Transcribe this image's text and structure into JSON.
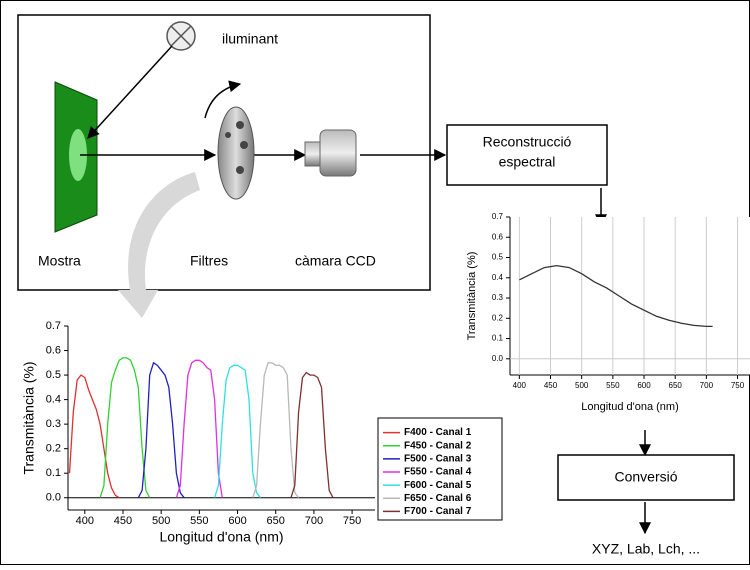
{
  "diagram": {
    "illuminant": "iluminant",
    "sample": "Mostra",
    "filters": "Filtres",
    "camera": "càmara CCD",
    "reconstruction": [
      "Reconstrucció",
      "espectral"
    ],
    "conversion": "Conversió",
    "output": "XYZ, Lab, Lch, ..."
  },
  "chart_data": [
    {
      "type": "line",
      "xlabel": "Longitud d'ona (nm)",
      "ylabel": "Transmitància (%)",
      "xlim": [
        378,
        780
      ],
      "xticks": [
        400,
        450,
        500,
        550,
        600,
        650,
        700,
        750
      ],
      "ylim": [
        -0.05,
        0.7
      ],
      "yticks": [
        {
          "value": 0,
          "label": "0.0"
        },
        0.1,
        0.2,
        0.3,
        0.4,
        0.5,
        0.6,
        0.7
      ],
      "legend": "right",
      "series": [
        {
          "name": "F400 - Canal 1",
          "color": "#e03030",
          "x": [
            380,
            385,
            390,
            395,
            400,
            405,
            410,
            415,
            420,
            425,
            430,
            435,
            440,
            445
          ],
          "values": [
            0.1,
            0.35,
            0.48,
            0.5,
            0.49,
            0.44,
            0.4,
            0.36,
            0.3,
            0.2,
            0.1,
            0.04,
            0.01,
            0
          ]
        },
        {
          "name": "F450 - Canal 2",
          "color": "#30d030",
          "x": [
            420,
            425,
            430,
            435,
            440,
            445,
            450,
            455,
            460,
            465,
            470,
            475,
            480,
            485
          ],
          "values": [
            0,
            0.05,
            0.3,
            0.47,
            0.52,
            0.56,
            0.57,
            0.57,
            0.56,
            0.52,
            0.45,
            0.2,
            0.03,
            0
          ]
        },
        {
          "name": "F500 - Canal 3",
          "color": "#2020c0",
          "x": [
            470,
            475,
            480,
            485,
            490,
            495,
            500,
            505,
            510,
            515,
            520,
            525,
            530
          ],
          "values": [
            0,
            0.03,
            0.2,
            0.5,
            0.55,
            0.54,
            0.52,
            0.5,
            0.45,
            0.3,
            0.1,
            0.02,
            0
          ]
        },
        {
          "name": "F550 - Canal 4",
          "color": "#e030e0",
          "x": [
            520,
            525,
            530,
            535,
            540,
            545,
            550,
            555,
            560,
            565,
            570,
            575,
            580
          ],
          "values": [
            0,
            0.05,
            0.3,
            0.5,
            0.55,
            0.56,
            0.56,
            0.55,
            0.53,
            0.52,
            0.4,
            0.1,
            0
          ]
        },
        {
          "name": "F600 - Canal 5",
          "color": "#30e0e0",
          "x": [
            570,
            575,
            580,
            585,
            590,
            595,
            600,
            605,
            610,
            615,
            620,
            625,
            630
          ],
          "values": [
            0,
            0.05,
            0.3,
            0.48,
            0.53,
            0.54,
            0.54,
            0.53,
            0.52,
            0.4,
            0.1,
            0.02,
            0
          ]
        },
        {
          "name": "F650 - Canal 6",
          "color": "#b8b8b8",
          "x": [
            620,
            625,
            630,
            635,
            640,
            645,
            650,
            655,
            660,
            665,
            670,
            675,
            680
          ],
          "values": [
            0,
            0.05,
            0.3,
            0.5,
            0.55,
            0.55,
            0.54,
            0.54,
            0.53,
            0.5,
            0.2,
            0.02,
            0
          ]
        },
        {
          "name": "F700 - Canal 7",
          "color": "#803030",
          "x": [
            670,
            675,
            680,
            685,
            690,
            695,
            700,
            705,
            710,
            715,
            720,
            725
          ],
          "values": [
            0,
            0.05,
            0.35,
            0.49,
            0.51,
            0.5,
            0.5,
            0.49,
            0.45,
            0.2,
            0.03,
            0
          ]
        }
      ]
    },
    {
      "type": "line",
      "xlabel": "Longitud d'ona (nm)",
      "ylabel": "Transmitància (%)",
      "xlim": [
        385,
        770
      ],
      "xticks": [
        400,
        450,
        500,
        550,
        600,
        650,
        700,
        750
      ],
      "ylim": [
        -0.08,
        0.7
      ],
      "yticks": [
        {
          "value": 0,
          "label": "0.0"
        },
        0.1,
        0.2,
        0.3,
        0.4,
        0.5,
        0.6,
        0.7
      ],
      "grid": true,
      "series": [
        {
          "color": "#333333",
          "x": [
            400,
            420,
            440,
            460,
            480,
            500,
            520,
            540,
            560,
            580,
            600,
            620,
            640,
            660,
            680,
            700,
            710
          ],
          "values": [
            0.39,
            0.42,
            0.45,
            0.46,
            0.45,
            0.42,
            0.38,
            0.35,
            0.31,
            0.27,
            0.24,
            0.21,
            0.19,
            0.175,
            0.165,
            0.16,
            0.16
          ]
        }
      ]
    }
  ]
}
